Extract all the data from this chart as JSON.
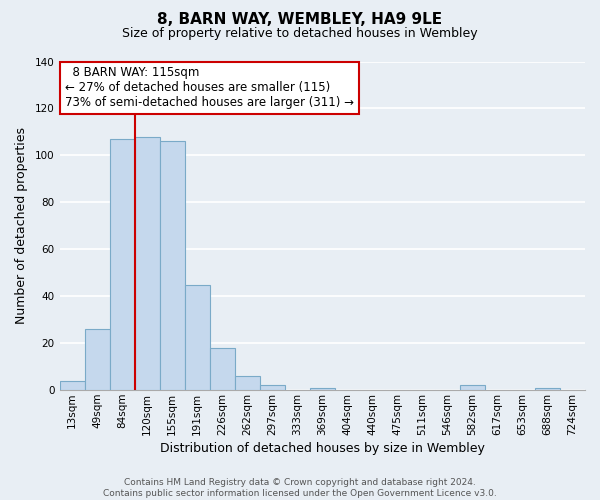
{
  "title": "8, BARN WAY, WEMBLEY, HA9 9LE",
  "subtitle": "Size of property relative to detached houses in Wembley",
  "xlabel": "Distribution of detached houses by size in Wembley",
  "ylabel": "Number of detached properties",
  "bar_labels": [
    "13sqm",
    "49sqm",
    "84sqm",
    "120sqm",
    "155sqm",
    "191sqm",
    "226sqm",
    "262sqm",
    "297sqm",
    "333sqm",
    "369sqm",
    "404sqm",
    "440sqm",
    "475sqm",
    "511sqm",
    "546sqm",
    "582sqm",
    "617sqm",
    "653sqm",
    "688sqm",
    "724sqm"
  ],
  "bar_values": [
    4,
    26,
    107,
    108,
    106,
    45,
    18,
    6,
    2,
    0,
    1,
    0,
    0,
    0,
    0,
    0,
    2,
    0,
    0,
    1,
    0
  ],
  "bar_color": "#c5d8ed",
  "bar_edge_color": "#7aaac8",
  "ylim": [
    0,
    140
  ],
  "yticks": [
    0,
    20,
    40,
    60,
    80,
    100,
    120,
    140
  ],
  "vline_x_idx": 2.5,
  "vline_color": "#cc0000",
  "annotation_title": "8 BARN WAY: 115sqm",
  "annotation_line1": "← 27% of detached houses are smaller (115)",
  "annotation_line2": "73% of semi-detached houses are larger (311) →",
  "annotation_box_facecolor": "#ffffff",
  "annotation_box_edgecolor": "#cc0000",
  "footer_line1": "Contains HM Land Registry data © Crown copyright and database right 2024.",
  "footer_line2": "Contains public sector information licensed under the Open Government Licence v3.0.",
  "fig_facecolor": "#e8eef4",
  "plot_facecolor": "#e8eef4",
  "grid_color": "#ffffff",
  "title_fontsize": 11,
  "subtitle_fontsize": 9,
  "xlabel_fontsize": 9,
  "ylabel_fontsize": 9,
  "tick_fontsize": 7.5,
  "annotation_fontsize": 8.5,
  "footer_fontsize": 6.5
}
